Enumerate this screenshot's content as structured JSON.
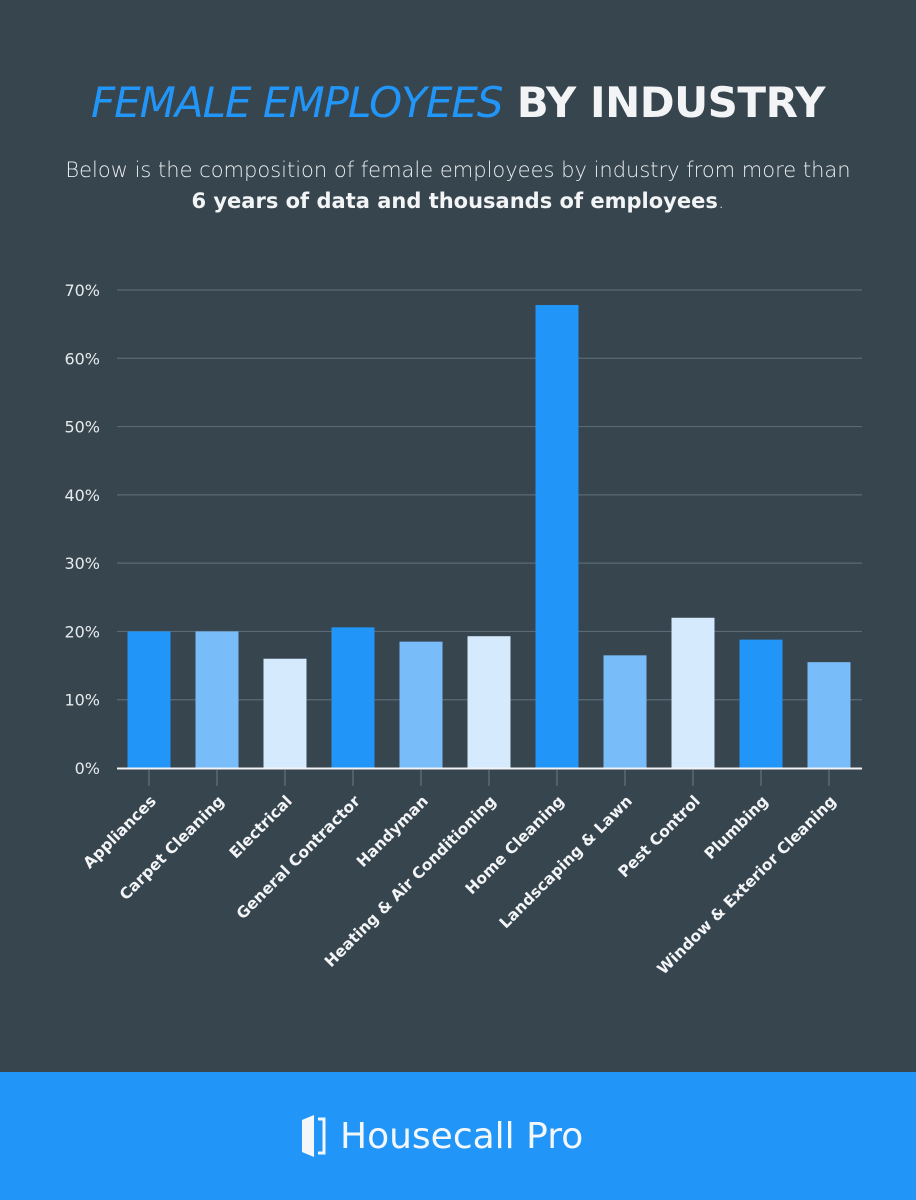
{
  "header": {
    "title_accent": "FEMALE EMPLOYEES",
    "title_rest": "BY INDUSTRY",
    "subtitle_plain": "Below is the composition of female employees by industry from more than ",
    "subtitle_bold": "6 years of data and thousands of employees",
    "subtitle_end": "."
  },
  "footer": {
    "brand_icon": "door-icon",
    "brand_name": "Housecall Pro"
  },
  "colors": {
    "background": "#37454f",
    "accent": "#2196f8",
    "bar_dark": "#2196f8",
    "bar_mid": "#78bdfa",
    "bar_light": "#d6eafd",
    "footer": "#2196f8"
  },
  "chart_data": {
    "type": "bar",
    "title": "Female Employees by Industry",
    "xlabel": "",
    "ylabel": "",
    "ylim": [
      0,
      70
    ],
    "yticks": [
      0,
      10,
      20,
      30,
      40,
      50,
      60,
      70
    ],
    "ytick_labels": [
      "0%",
      "10%",
      "20%",
      "30%",
      "40%",
      "50%",
      "60%",
      "70%"
    ],
    "grid": true,
    "categories": [
      "Appliances",
      "Carpet Cleaning",
      "Electrical",
      "General Contractor",
      "Handyman",
      "Heating & Air Conditioning",
      "Home Cleaning",
      "Landscaping & Lawn",
      "Pest Control",
      "Plumbing",
      "Window & Exterior Cleaning"
    ],
    "values": [
      20.0,
      20.0,
      16.0,
      20.6,
      18.5,
      19.3,
      67.8,
      16.5,
      22.0,
      18.8,
      15.5
    ],
    "bar_color_cycle": [
      "#2196f8",
      "#78bdfa",
      "#d6eafd"
    ],
    "value_format": "percent"
  }
}
